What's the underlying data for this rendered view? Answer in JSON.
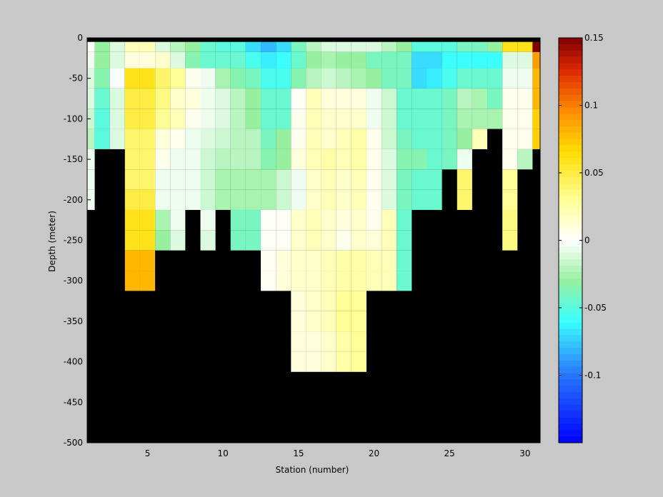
{
  "chart_data": {
    "type": "heatmap",
    "title": "",
    "xlabel": "Station (number)",
    "ylabel": "Depth (meter)",
    "xlim": [
      1,
      31
    ],
    "ylim": [
      -500,
      0
    ],
    "x_ticks": [
      5,
      10,
      15,
      20,
      25,
      30
    ],
    "y_ticks": [
      0,
      -50,
      -100,
      -150,
      -200,
      -250,
      -300,
      -350,
      -400,
      -450,
      -500
    ],
    "colorbar": {
      "min": -0.15,
      "max": 0.15,
      "ticks": [
        0.15,
        0.1,
        0.05,
        0,
        -0.05,
        -0.1
      ],
      "tick_labels": [
        "0.15",
        "0.1",
        "0.05",
        "0",
        "-0.05",
        "-0.1"
      ],
      "colormap": "jet-white-center"
    },
    "stations": [
      1,
      2,
      3,
      4,
      5,
      6,
      7,
      8,
      9,
      10,
      11,
      12,
      13,
      14,
      15,
      16,
      17,
      18,
      19,
      20,
      21,
      22,
      23,
      24,
      25,
      26,
      27,
      28,
      29,
      30,
      31
    ],
    "depth_levels": [
      -10,
      -25,
      -50,
      -75,
      -100,
      -125,
      -150,
      -175,
      -200,
      -225,
      -250,
      -275,
      -300,
      -325,
      -350,
      -375,
      -400
    ],
    "values": [
      [
        0.002,
        -0.03,
        -0.01,
        0.02,
        0.02,
        -0.01,
        -0.02,
        -0.03,
        -0.045,
        -0.05,
        -0.05,
        -0.07,
        -0.08,
        -0.07,
        -0.04,
        -0.02,
        -0.01,
        -0.01,
        -0.01,
        -0.01,
        -0.02,
        -0.03,
        -0.05,
        -0.05,
        -0.05,
        -0.04,
        -0.04,
        -0.03,
        0.06,
        0.06,
        0.15
      ],
      [
        -0.004,
        -0.03,
        -0.01,
        0.01,
        0.01,
        0.015,
        -0.01,
        -0.035,
        -0.045,
        -0.045,
        -0.045,
        -0.055,
        -0.065,
        -0.06,
        -0.045,
        -0.03,
        -0.025,
        -0.03,
        -0.03,
        -0.04,
        -0.04,
        -0.04,
        -0.07,
        -0.07,
        -0.06,
        -0.06,
        -0.06,
        -0.06,
        -0.01,
        -0.01,
        0.09
      ],
      [
        -0.01,
        -0.035,
        -0.002,
        0.06,
        0.06,
        0.04,
        0.03,
        0.005,
        -0.005,
        -0.025,
        -0.035,
        -0.04,
        -0.055,
        -0.055,
        -0.035,
        -0.02,
        -0.015,
        -0.02,
        -0.025,
        -0.03,
        -0.04,
        -0.04,
        -0.07,
        -0.065,
        -0.055,
        -0.045,
        -0.045,
        -0.045,
        -0.005,
        -0.005,
        0.08
      ],
      [
        -0.01,
        -0.045,
        -0.01,
        0.05,
        0.05,
        0.035,
        0.015,
        0.01,
        -0.005,
        -0.01,
        -0.02,
        -0.03,
        -0.045,
        -0.045,
        0.002,
        0.02,
        0.01,
        0.01,
        0.01,
        -0.005,
        -0.015,
        -0.045,
        -0.045,
        -0.045,
        -0.04,
        -0.02,
        -0.025,
        -0.04,
        0.005,
        0.005,
        0.08
      ],
      [
        -0.015,
        -0.05,
        -0.01,
        0.05,
        0.05,
        0.03,
        0.02,
        0.005,
        -0.005,
        -0.01,
        -0.02,
        -0.03,
        -0.045,
        -0.045,
        0.005,
        0.02,
        0.015,
        0.015,
        0.015,
        -0.005,
        -0.015,
        -0.045,
        -0.045,
        -0.045,
        -0.04,
        -0.025,
        -0.025,
        -0.025,
        0.005,
        0.005,
        0.07
      ],
      [
        -0.02,
        -0.05,
        -0.01,
        0.04,
        0.04,
        0.01,
        0.005,
        -0.005,
        -0.01,
        -0.015,
        -0.02,
        -0.02,
        -0.04,
        -0.03,
        0.005,
        0.02,
        0.015,
        0.02,
        0.025,
        0.005,
        -0.015,
        -0.04,
        -0.045,
        -0.045,
        -0.04,
        -0.03,
        0.02,
        null,
        0.005,
        0.005,
        0.07
      ],
      [
        -0.005,
        null,
        null,
        0.04,
        0.04,
        0.005,
        -0.005,
        -0.005,
        -0.015,
        -0.02,
        -0.02,
        -0.02,
        -0.035,
        -0.03,
        0.01,
        0.02,
        0.025,
        0.02,
        0.025,
        0.005,
        -0.01,
        -0.035,
        -0.035,
        -0.045,
        -0.04,
        -0.005,
        null,
        null,
        0.005,
        -0.02,
        null
      ],
      [
        -0.005,
        null,
        null,
        0.04,
        0.04,
        -0.005,
        -0.005,
        -0.005,
        -0.015,
        -0.025,
        -0.025,
        -0.025,
        -0.025,
        -0.015,
        -0.005,
        0.015,
        0.02,
        0.015,
        0.02,
        0.005,
        -0.01,
        -0.04,
        -0.045,
        -0.045,
        null,
        0.04,
        null,
        null,
        0.03,
        null,
        null
      ],
      [
        -0.005,
        null,
        null,
        0.05,
        0.05,
        -0.005,
        -0.005,
        -0.005,
        -0.015,
        -0.025,
        -0.025,
        -0.025,
        -0.025,
        -0.015,
        -0.005,
        0.015,
        0.02,
        0.015,
        0.02,
        0.005,
        -0.01,
        -0.04,
        -0.045,
        -0.045,
        null,
        0.04,
        null,
        null,
        0.03,
        null,
        null
      ],
      [
        null,
        null,
        null,
        0.06,
        0.06,
        -0.025,
        -0.005,
        null,
        -0.005,
        null,
        -0.04,
        -0.04,
        0.002,
        0.002,
        0.015,
        0.02,
        0.015,
        0.01,
        0.015,
        0.005,
        0.02,
        -0.045,
        null,
        null,
        null,
        null,
        null,
        null,
        0.035,
        null,
        null
      ],
      [
        null,
        null,
        null,
        0.06,
        0.06,
        -0.03,
        -0.01,
        null,
        -0.01,
        null,
        -0.04,
        -0.04,
        0.002,
        0.002,
        0.015,
        0.02,
        0.015,
        0.005,
        0.015,
        0.01,
        0.02,
        -0.045,
        null,
        null,
        null,
        null,
        null,
        null,
        0.035,
        null,
        null
      ],
      [
        null,
        null,
        null,
        0.08,
        0.08,
        null,
        null,
        null,
        null,
        null,
        null,
        null,
        0.003,
        0.01,
        0.015,
        0.015,
        0.02,
        0.025,
        0.025,
        0.02,
        0.02,
        -0.045,
        null,
        null,
        null,
        null,
        null,
        null,
        null,
        null,
        null
      ],
      [
        null,
        null,
        null,
        0.08,
        0.08,
        null,
        null,
        null,
        null,
        null,
        null,
        null,
        0.003,
        0.01,
        0.015,
        0.015,
        0.02,
        0.025,
        0.025,
        0.02,
        0.02,
        -0.045,
        null,
        null,
        null,
        null,
        null,
        null,
        null,
        null,
        null
      ],
      [
        null,
        null,
        null,
        null,
        null,
        null,
        null,
        null,
        null,
        null,
        null,
        null,
        null,
        null,
        0.01,
        0.015,
        0.02,
        0.03,
        0.03,
        null,
        null,
        null,
        null,
        null,
        null,
        null,
        null,
        null,
        null,
        null,
        null
      ],
      [
        null,
        null,
        null,
        null,
        null,
        null,
        null,
        null,
        null,
        null,
        null,
        null,
        null,
        null,
        0.01,
        0.015,
        0.02,
        0.03,
        0.03,
        null,
        null,
        null,
        null,
        null,
        null,
        null,
        null,
        null,
        null,
        null,
        null
      ],
      [
        null,
        null,
        null,
        null,
        null,
        null,
        null,
        null,
        null,
        null,
        null,
        null,
        null,
        null,
        0.01,
        0.01,
        0.015,
        0.025,
        0.03,
        null,
        null,
        null,
        null,
        null,
        null,
        null,
        null,
        null,
        null,
        null,
        null
      ],
      [
        null,
        null,
        null,
        null,
        null,
        null,
        null,
        null,
        null,
        null,
        null,
        null,
        null,
        null,
        0.01,
        0.01,
        0.015,
        0.025,
        0.03,
        null,
        null,
        null,
        null,
        null,
        null,
        null,
        null,
        null,
        null,
        null,
        null
      ]
    ],
    "grid": false,
    "legend": "colorbar-right"
  }
}
